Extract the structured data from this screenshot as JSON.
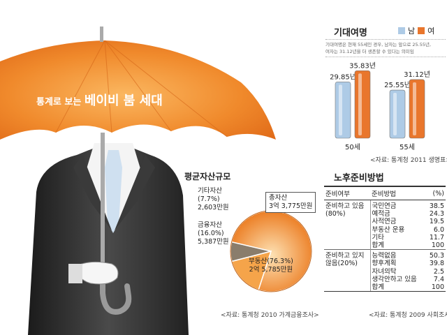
{
  "headline": {
    "prefix": "통계로 보는",
    "highlight": "베이비 붐 세대"
  },
  "life_expectancy": {
    "title": "기대여명",
    "legend": [
      "남",
      "여"
    ],
    "note_line1": "기대여명은 현재 55세인 경우, 남자는 앞으로 25.55년,",
    "note_line2": "여자는 31.12년을 더 생존할 수 있다는 의미임",
    "source": "<자료: 통계청 2011 생명표>"
  },
  "assets": {
    "title": "평균자산규모",
    "other_label": "기타자산",
    "other_pct": "(7.7%)",
    "other_value": "2,603만원",
    "financial_label": "금융자산",
    "financial_pct": "(16.0%)",
    "financial_value": "5,387만원",
    "real_estate_label": "부동산(76.3%)",
    "real_estate_value": "2억 5,785만원",
    "total_label": "총자산",
    "total_value": "3억 3,775만원",
    "source": "<자료: 통계청 2010 가계금융조사>"
  },
  "retirement": {
    "title": "노후준비방법",
    "headers": [
      "준비여부",
      "준비방법",
      "(%)"
    ],
    "groups": [
      {
        "category": [
          "준비하고 있음",
          "(80%)"
        ],
        "rows": [
          {
            "method": "국민연금",
            "pct": "38.5"
          },
          {
            "method": "예적금",
            "pct": "24.3"
          },
          {
            "method": "사적연금",
            "pct": "19.5"
          },
          {
            "method": "부동산 운용",
            "pct": "6.0"
          },
          {
            "method": "기타",
            "pct": "11.7"
          },
          {
            "method": "합계",
            "pct": "100"
          }
        ]
      },
      {
        "category": [
          "준비하고 있지",
          "않음(20%)"
        ],
        "rows": [
          {
            "method": "능력없음",
            "pct": "50.3"
          },
          {
            "method": "향후계획",
            "pct": "39.8"
          },
          {
            "method": "자녀의탁",
            "pct": "2.5"
          },
          {
            "method": "생각안하고 있음",
            "pct": "7.4"
          },
          {
            "method": "합계",
            "pct": "100"
          }
        ]
      }
    ],
    "source": "<자료: 통계청 2009 사회조사>"
  },
  "colors": {
    "male": "#aecbe6",
    "female": "#e9762c",
    "umbrella": "#f08a2c",
    "pie_main": "#f7b35f",
    "pie_other": "#8a7d6c"
  },
  "chart_data": [
    {
      "type": "bar",
      "title": "기대여명",
      "categories": [
        "50세",
        "55세"
      ],
      "series": [
        {
          "name": "남",
          "values": [
            29.85,
            25.55
          ]
        },
        {
          "name": "여",
          "values": [
            35.83,
            31.12
          ]
        }
      ],
      "data_labels": [
        [
          "29.85년",
          "25.55년"
        ],
        [
          "35.83년",
          "31.12년"
        ]
      ],
      "ylim": [
        0,
        40
      ],
      "legend": "top-right"
    },
    {
      "type": "pie",
      "title": "평균자산규모",
      "categories": [
        "부동산",
        "금융자산",
        "기타자산"
      ],
      "values": [
        76.3,
        16.0,
        7.7
      ],
      "amounts": [
        "2억 5,785만원",
        "5,387만원",
        "2,603만원"
      ],
      "total": "3억 3,775만원"
    },
    {
      "type": "table",
      "title": "노후준비방법"
    }
  ]
}
